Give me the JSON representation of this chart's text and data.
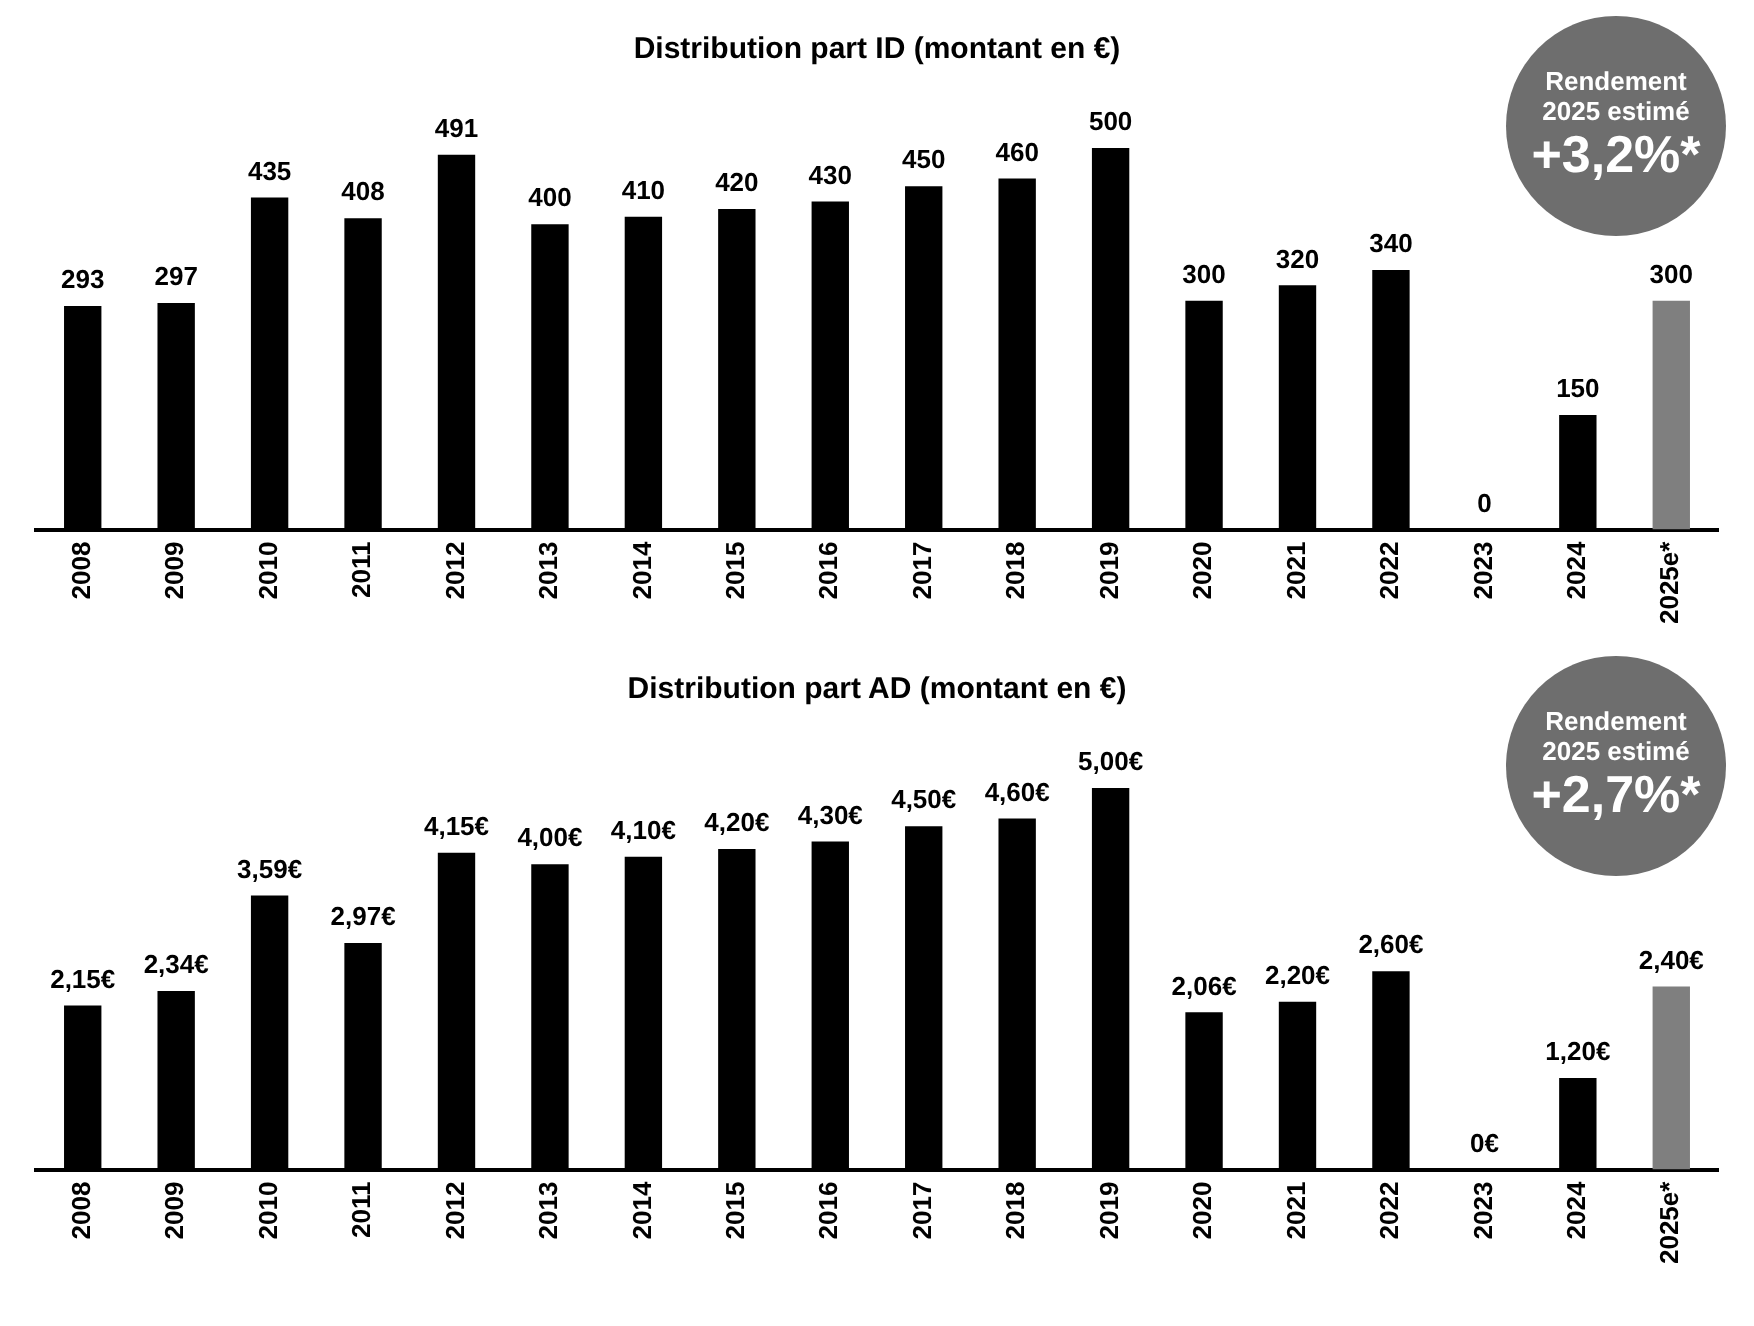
{
  "chart_data": [
    {
      "type": "bar",
      "title": "Distribution part ID (montant en €)",
      "categories": [
        "2008",
        "2009",
        "2010",
        "2011",
        "2012",
        "2013",
        "2014",
        "2015",
        "2016",
        "2017",
        "2018",
        "2019",
        "2020",
        "2021",
        "2022",
        "2023",
        "2024",
        "2025e*"
      ],
      "values": [
        293,
        297,
        435,
        408,
        491,
        400,
        410,
        420,
        430,
        450,
        460,
        500,
        300,
        320,
        340,
        0,
        150,
        300
      ],
      "colors": [
        "#000000",
        "#000000",
        "#000000",
        "#000000",
        "#000000",
        "#000000",
        "#000000",
        "#000000",
        "#000000",
        "#000000",
        "#000000",
        "#000000",
        "#000000",
        "#000000",
        "#000000",
        "#000000",
        "#000000",
        "#7f7f7f"
      ],
      "data_labels": true,
      "grid": false,
      "legend": false,
      "tick_labels": "x",
      "annotations": [
        "Rendement 2025 estimé",
        "+3,2%*"
      ]
    },
    {
      "type": "bar",
      "title": "Distribution part AD (montant en €)",
      "categories": [
        "2008",
        "2009",
        "2010",
        "2011",
        "2012",
        "2013",
        "2014",
        "2015",
        "2016",
        "2017",
        "2018",
        "2019",
        "2020",
        "2021",
        "2022",
        "2023",
        "2024",
        "2025e*"
      ],
      "values": [
        2.15,
        2.34,
        3.59,
        2.97,
        4.15,
        4.0,
        4.1,
        4.2,
        4.3,
        4.5,
        4.6,
        5.0,
        2.06,
        2.2,
        2.6,
        0,
        1.2,
        2.4
      ],
      "value_labels": [
        "2,15€",
        "2,34€",
        "3,59€",
        "2,97€",
        "4,15€",
        "4,00€",
        "4,10€",
        "4,20€",
        "4,30€",
        "4,50€",
        "4,60€",
        "5,00€",
        "2,06€",
        "2,20€",
        "2,60€",
        "0€",
        "1,20€",
        "2,40€"
      ],
      "colors": [
        "#000000",
        "#000000",
        "#000000",
        "#000000",
        "#000000",
        "#000000",
        "#000000",
        "#000000",
        "#000000",
        "#000000",
        "#000000",
        "#000000",
        "#000000",
        "#000000",
        "#000000",
        "#000000",
        "#000000",
        "#7f7f7f"
      ],
      "grid": false,
      "legend": false,
      "tick_labels": "x",
      "annotations": [
        "Rendement 2025 estimé",
        "+2,7%*"
      ]
    }
  ]
}
